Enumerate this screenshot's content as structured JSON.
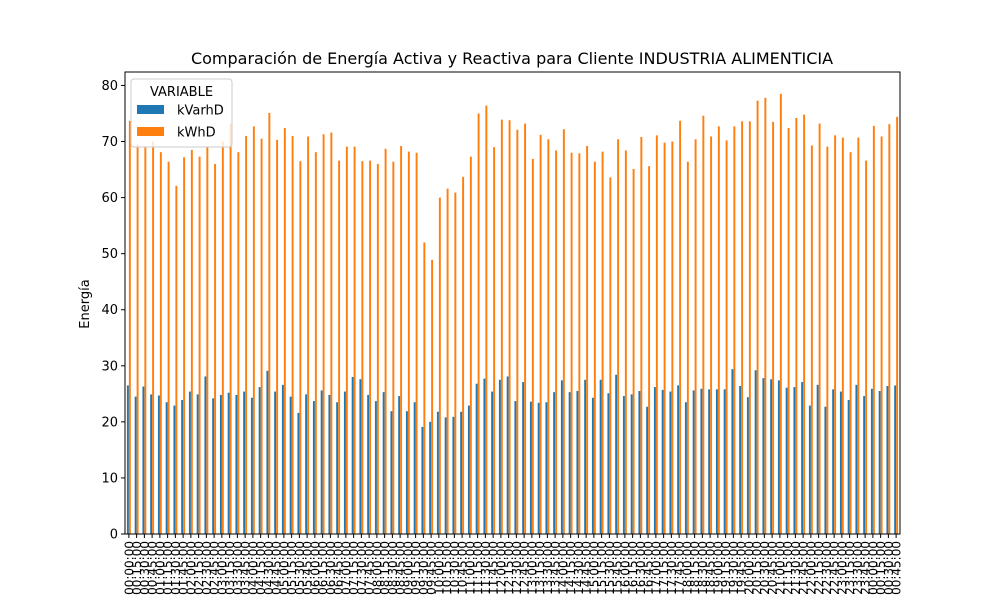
{
  "chart_data": {
    "type": "bar",
    "title": "Comparación de Energía Activa y Reactiva para Cliente INDUSTRIA ALIMENTICIA",
    "xlabel": "",
    "ylabel": "Energía",
    "ylim": [
      0,
      82.4
    ],
    "yticks": [
      0,
      10,
      20,
      30,
      40,
      50,
      60,
      70,
      80
    ],
    "grid": false,
    "legend": {
      "title": "VARIABLE",
      "placement": "top-left",
      "entries": [
        "kVarhD",
        "kWhD"
      ]
    },
    "categories": [
      "00:00:00",
      "00:15:00",
      "00:30:00",
      "00:45:00",
      "01:00:00",
      "01:15:00",
      "01:30:00",
      "01:45:00",
      "02:00:00",
      "02:15:00",
      "02:30:00",
      "02:45:00",
      "03:00:00",
      "03:15:00",
      "03:30:00",
      "03:45:00",
      "04:00:00",
      "04:15:00",
      "04:30:00",
      "04:45:00",
      "05:00:00",
      "05:15:00",
      "05:30:00",
      "05:45:00",
      "06:00:00",
      "06:15:00",
      "06:30:00",
      "06:45:00",
      "07:00:00",
      "07:15:00",
      "07:30:00",
      "07:45:00",
      "08:00:00",
      "08:15:00",
      "08:30:00",
      "08:45:00",
      "09:00:00",
      "09:15:00",
      "09:30:00",
      "09:45:00",
      "10:00:00",
      "10:15:00",
      "10:30:00",
      "10:45:00",
      "11:00:00",
      "11:15:00",
      "11:30:00",
      "11:45:00",
      "12:00:00",
      "12:15:00",
      "12:30:00",
      "12:45:00",
      "13:00:00",
      "13:15:00",
      "13:30:00",
      "13:45:00",
      "14:00:00",
      "14:15:00",
      "14:30:00",
      "14:45:00",
      "15:00:00",
      "15:15:00",
      "15:30:00",
      "15:45:00",
      "16:00:00",
      "16:15:00",
      "16:30:00",
      "16:45:00",
      "17:00:00",
      "17:15:00",
      "17:30:00",
      "17:45:00",
      "18:00:00",
      "18:15:00",
      "18:30:00",
      "18:45:00",
      "19:00:00",
      "19:15:00",
      "19:30:00",
      "19:45:00",
      "20:00:00",
      "20:15:00",
      "20:30:00",
      "20:45:00",
      "21:00:00",
      "21:15:00",
      "21:30:00",
      "21:45:00",
      "22:00:00",
      "22:15:00",
      "22:30:00",
      "22:45:00",
      "23:00:00",
      "23:15:00",
      "23:30:00",
      "23:45:00",
      "00:00:00",
      "00:15:00",
      "00:30:00",
      "00:45:00"
    ],
    "series": [
      {
        "name": "kVarhD",
        "color": "#1f77b4",
        "values": [
          26.5,
          24.5,
          26.3,
          24.9,
          24.7,
          23.5,
          22.9,
          23.9,
          25.4,
          24.9,
          28.1,
          24.2,
          24.8,
          25.2,
          24.8,
          25.4,
          24.3,
          26.2,
          29.1,
          25.4,
          26.6,
          24.5,
          21.6,
          24.9,
          23.7,
          25.6,
          24.8,
          23.5,
          25.4,
          28.0,
          27.6,
          24.8,
          23.7,
          25.3,
          21.9,
          24.6,
          21.9,
          23.5,
          19.1,
          20.0,
          21.8,
          20.8,
          20.9,
          21.8,
          22.9,
          26.8,
          27.7,
          25.4,
          27.5,
          28.1,
          23.7,
          27.1,
          23.6,
          23.4,
          23.5,
          25.3,
          27.4,
          25.3,
          25.5,
          27.5,
          24.3,
          27.5,
          25.1,
          28.4,
          24.6,
          24.9,
          25.5,
          22.7,
          26.2,
          25.7,
          25.4,
          26.5,
          23.5,
          25.6,
          25.9,
          25.8,
          25.8,
          25.8,
          29.4,
          26.4,
          24.4,
          29.2,
          27.8,
          27.6,
          27.4,
          26.1,
          26.2,
          27.1,
          22.9,
          26.6,
          22.7,
          25.8,
          25.4,
          23.9,
          26.6,
          24.6,
          25.9,
          25.5,
          26.4,
          26.5
        ]
      },
      {
        "name": "kWhD",
        "color": "#ff7f0e",
        "values": [
          73.7,
          69.5,
          69.0,
          70.0,
          68.1,
          66.4,
          62.1,
          67.2,
          68.5,
          67.3,
          69.1,
          66.0,
          70.0,
          73.2,
          68.1,
          71.0,
          72.7,
          70.5,
          75.1,
          70.3,
          72.4,
          71.0,
          66.5,
          70.9,
          68.1,
          71.3,
          71.6,
          66.6,
          69.1,
          69.1,
          66.5,
          66.6,
          66.0,
          68.7,
          66.4,
          69.2,
          68.2,
          68.0,
          52.0,
          48.9,
          60.0,
          61.6,
          60.9,
          63.7,
          67.3,
          75.0,
          76.4,
          69.0,
          73.9,
          73.8,
          72.1,
          73.2,
          66.9,
          71.2,
          70.4,
          68.4,
          72.2,
          68.0,
          67.9,
          69.2,
          66.4,
          68.2,
          63.6,
          70.4,
          68.4,
          65.1,
          70.8,
          65.6,
          71.1,
          69.8,
          70.0,
          73.7,
          66.4,
          70.4,
          74.6,
          70.9,
          72.7,
          70.2,
          72.7,
          73.6,
          73.6,
          77.3,
          77.8,
          73.5,
          78.5,
          72.4,
          74.2,
          74.8,
          69.3,
          73.2,
          69.1,
          71.1,
          70.7,
          68.1,
          70.7,
          66.6,
          72.8,
          70.9,
          73.1,
          74.4
        ]
      }
    ]
  }
}
